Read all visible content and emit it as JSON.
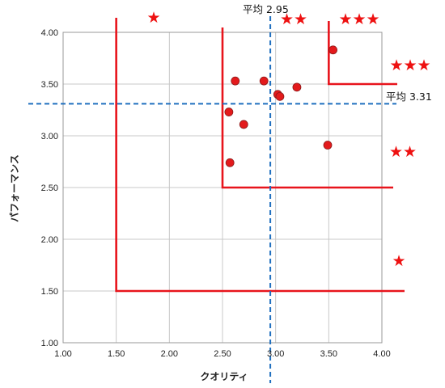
{
  "chart_data": {
    "type": "scatter",
    "title": "",
    "xlabel": "クオリティ",
    "ylabel": "パフォーマンス",
    "xlim": [
      1.0,
      4.0
    ],
    "ylim": [
      1.0,
      4.0
    ],
    "xticks": [
      "1.00",
      "1.50",
      "2.00",
      "2.50",
      "3.00",
      "3.50",
      "4.00"
    ],
    "yticks": [
      "1.00",
      "1.50",
      "2.00",
      "2.50",
      "3.00",
      "3.50",
      "4.00"
    ],
    "grid": true,
    "legend": "none",
    "points": [
      {
        "x": 2.57,
        "y": 2.74
      },
      {
        "x": 2.62,
        "y": 3.53
      },
      {
        "x": 2.56,
        "y": 3.23
      },
      {
        "x": 2.7,
        "y": 3.11
      },
      {
        "x": 2.89,
        "y": 3.53
      },
      {
        "x": 3.02,
        "y": 3.4
      },
      {
        "x": 3.04,
        "y": 3.38
      },
      {
        "x": 3.2,
        "y": 3.47
      },
      {
        "x": 3.49,
        "y": 2.91
      },
      {
        "x": 3.54,
        "y": 3.83
      }
    ],
    "reference_lines": [
      {
        "axis": "x",
        "value": 2.95,
        "label": "平均 2.95"
      },
      {
        "axis": "y",
        "value": 3.31,
        "label": "平均 3.31"
      }
    ],
    "zones": [
      {
        "threshold": 1.5
      },
      {
        "threshold": 2.5
      },
      {
        "threshold": 3.5
      }
    ],
    "star_labels": [
      {
        "text": "★",
        "near": "top"
      },
      {
        "text": "★★",
        "near": "top"
      },
      {
        "text": "★★★",
        "near": "top"
      },
      {
        "text": "★★★",
        "near": "right"
      },
      {
        "text": "★★",
        "near": "right"
      },
      {
        "text": "★",
        "near": "right"
      }
    ],
    "colors": {
      "points": "#e31a1c",
      "point_outline": "#8b1a1a",
      "zones": "#e8141c",
      "reference": "#1f6fbf",
      "grid": "#c8c8c8",
      "stars": "#ee1111"
    }
  }
}
